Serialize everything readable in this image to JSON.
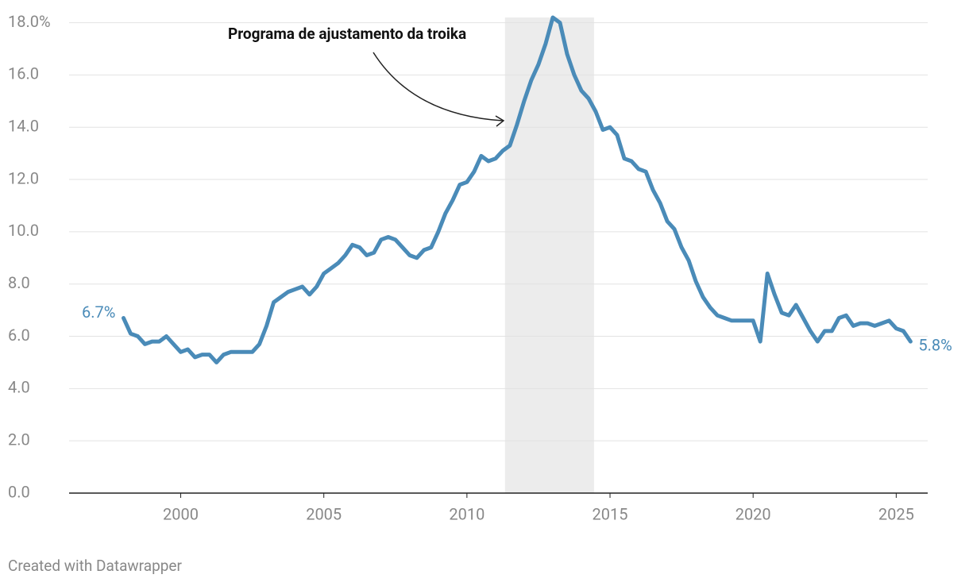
{
  "chart_data": {
    "type": "line",
    "annotation": "Programa de ajustamento da troika",
    "highlight": [
      2011.33,
      2014.44
    ],
    "credit": "Created with Datawrapper",
    "x": [
      1998.0,
      1998.25,
      1998.5,
      1998.75,
      1999.0,
      1999.25,
      1999.5,
      1999.75,
      2000.0,
      2000.25,
      2000.5,
      2000.75,
      2001.0,
      2001.25,
      2001.5,
      2001.75,
      2002.0,
      2002.25,
      2002.5,
      2002.75,
      2003.0,
      2003.25,
      2003.5,
      2003.75,
      2004.0,
      2004.25,
      2004.5,
      2004.75,
      2005.0,
      2005.25,
      2005.5,
      2005.75,
      2006.0,
      2006.25,
      2006.5,
      2006.75,
      2007.0,
      2007.25,
      2007.5,
      2007.75,
      2008.0,
      2008.25,
      2008.5,
      2008.75,
      2009.0,
      2009.25,
      2009.5,
      2009.75,
      2010.0,
      2010.25,
      2010.5,
      2010.75,
      2011.0,
      2011.25,
      2011.5,
      2011.75,
      2012.0,
      2012.25,
      2012.5,
      2012.75,
      2013.0,
      2013.25,
      2013.5,
      2013.75,
      2014.0,
      2014.25,
      2014.5,
      2014.75,
      2015.0,
      2015.25,
      2015.5,
      2015.75,
      2016.0,
      2016.25,
      2016.5,
      2016.75,
      2017.0,
      2017.25,
      2017.5,
      2017.75,
      2018.0,
      2018.25,
      2018.5,
      2018.75,
      2019.0,
      2019.25,
      2019.5,
      2019.75,
      2020.0,
      2020.25,
      2020.5,
      2020.75,
      2021.0,
      2021.25,
      2021.5,
      2021.75,
      2022.0,
      2022.25,
      2022.5,
      2022.75,
      2023.0,
      2023.25,
      2023.5,
      2023.75,
      2024.0,
      2024.25,
      2024.5,
      2024.75,
      2025.0,
      2025.25,
      2025.5
    ],
    "series": [
      {
        "color": "#4a8bb8",
        "values": [
          6.7,
          6.1,
          6.0,
          5.7,
          5.8,
          5.8,
          6.0,
          5.7,
          5.4,
          5.5,
          5.2,
          5.3,
          5.3,
          5.0,
          5.3,
          5.4,
          5.4,
          5.4,
          5.4,
          5.7,
          6.4,
          7.3,
          7.5,
          7.7,
          7.8,
          7.9,
          7.6,
          7.9,
          8.4,
          8.6,
          8.8,
          9.1,
          9.5,
          9.4,
          9.1,
          9.2,
          9.7,
          9.8,
          9.7,
          9.4,
          9.1,
          9.0,
          9.3,
          9.4,
          10.0,
          10.7,
          11.2,
          11.8,
          11.9,
          12.3,
          12.9,
          12.7,
          12.8,
          13.1,
          13.3,
          14.1,
          15.0,
          15.8,
          16.4,
          17.2,
          18.2,
          18.0,
          16.8,
          16.0,
          15.4,
          15.1,
          14.6,
          13.9,
          14.0,
          13.7,
          12.8,
          12.7,
          12.4,
          12.3,
          11.6,
          11.1,
          10.4,
          10.1,
          9.4,
          8.9,
          8.1,
          7.5,
          7.1,
          6.8,
          6.7,
          6.6,
          6.6,
          6.6,
          6.6,
          5.8,
          8.4,
          7.6,
          6.9,
          6.8,
          7.2,
          6.7,
          6.2,
          5.8,
          6.2,
          6.2,
          6.7,
          6.8,
          6.4,
          6.5,
          6.5,
          6.4,
          6.5,
          6.6,
          6.3,
          6.2,
          5.8
        ],
        "value_labels": [
          "6.7%",
          null,
          null,
          null,
          null,
          null,
          null,
          null,
          null,
          null,
          null,
          null,
          null,
          null,
          null,
          null,
          null,
          null,
          null,
          null,
          null,
          null,
          null,
          null,
          null,
          null,
          null,
          null,
          null,
          null,
          null,
          null,
          null,
          null,
          null,
          null,
          null,
          null,
          null,
          null,
          null,
          null,
          null,
          null,
          null,
          null,
          null,
          null,
          null,
          null,
          null,
          null,
          null,
          null,
          null,
          null,
          null,
          null,
          null,
          null,
          null,
          null,
          null,
          null,
          null,
          null,
          null,
          null,
          null,
          null,
          null,
          null,
          null,
          null,
          null,
          null,
          null,
          null,
          null,
          null,
          null,
          null,
          null,
          null,
          null,
          null,
          null,
          null,
          null,
          null,
          null,
          null,
          null,
          null,
          null,
          null,
          null,
          null,
          null,
          null,
          null,
          null,
          null,
          null,
          null,
          null,
          null,
          null,
          null,
          null,
          "5.8%"
        ]
      }
    ],
    "xlim": [
      1996.1,
      2026.1
    ],
    "xticks": [
      2000,
      2005,
      2010,
      2015,
      2020,
      2025
    ],
    "ylim": [
      0,
      18.2
    ],
    "yticks": [
      {
        "value": 0,
        "label": "0.0"
      },
      {
        "value": 2,
        "label": "2.0"
      },
      {
        "value": 4,
        "label": "4.0"
      },
      {
        "value": 6,
        "label": "6.0"
      },
      {
        "value": 8,
        "label": "8.0"
      },
      {
        "value": 10,
        "label": "10.0"
      },
      {
        "value": 12,
        "label": "12.0"
      },
      {
        "value": 14,
        "label": "14.0"
      },
      {
        "value": 16,
        "label": "16.0"
      },
      {
        "value": 18,
        "label": "18.0%"
      }
    ],
    "grid": true
  }
}
